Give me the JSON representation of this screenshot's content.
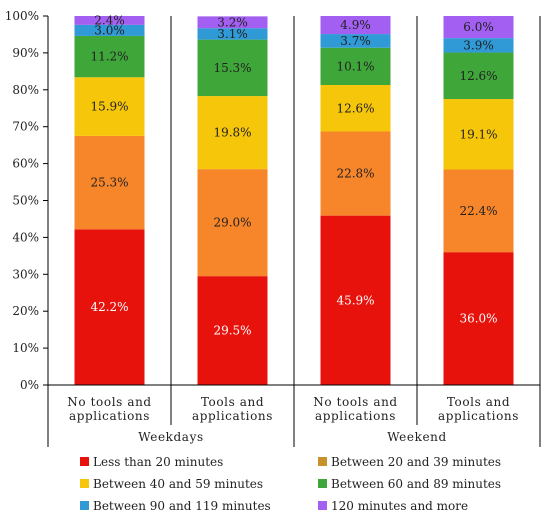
{
  "chart_data": {
    "type": "bar",
    "stacked": true,
    "percent": true,
    "categories": [
      "No tools and applications",
      "Tools and applications",
      "No tools and applications",
      "Tools and applications"
    ],
    "category_lines": [
      [
        "No tools and",
        "applications"
      ],
      [
        "Tools and",
        "applications"
      ],
      [
        "No tools and",
        "applications"
      ],
      [
        "Tools and",
        "applications"
      ]
    ],
    "groups": [
      {
        "label": "Weekdays",
        "categories": [
          0,
          1
        ]
      },
      {
        "label": "Weekend",
        "categories": [
          2,
          3
        ]
      }
    ],
    "ylim": [
      0,
      100
    ],
    "yticks": [
      "0%",
      "10%",
      "20%",
      "30%",
      "40%",
      "50%",
      "60%",
      "70%",
      "80%",
      "90%",
      "100%"
    ],
    "legend_position": "bottom",
    "series": [
      {
        "name": "Less than 20 minutes",
        "color": "#e8120c",
        "label_color": "#ffffff",
        "values": [
          42.2,
          29.5,
          45.9,
          36.0
        ],
        "labels": [
          "42.2%",
          "29.5%",
          "45.9%",
          "36.0%"
        ]
      },
      {
        "name": "Between 20 and 39 minutes",
        "color": "#f7862a",
        "label_color": "#222222",
        "values": [
          25.3,
          29.0,
          22.8,
          22.4
        ],
        "labels": [
          "25.3%",
          "29.0%",
          "22.8%",
          "22.4%"
        ]
      },
      {
        "name": "Between 40 and 59 minutes",
        "color": "#f6c60a",
        "label_color": "#222222",
        "values": [
          15.9,
          19.8,
          12.6,
          19.1
        ],
        "labels": [
          "15.9%",
          "19.8%",
          "12.6%",
          "19.1%"
        ]
      },
      {
        "name": "Between 60 and 89 minutes",
        "color": "#3fa63a",
        "label_color": "#222222",
        "values": [
          11.2,
          15.3,
          10.1,
          12.6
        ],
        "labels": [
          "11.2%",
          "15.3%",
          "10.1%",
          "12.6%"
        ]
      },
      {
        "name": "Between 90 and 119 minutes",
        "color": "#2f9ad6",
        "label_color": "#222222",
        "values": [
          3.0,
          3.1,
          3.7,
          3.9
        ],
        "labels": [
          "3.0%",
          "3.1%",
          "3.7%",
          "3.9%"
        ]
      },
      {
        "name": "120 minutes and more",
        "color": "#a25ff2",
        "label_color": "#222222",
        "values": [
          2.4,
          3.2,
          4.9,
          6.0
        ],
        "labels": [
          "2.4%",
          "3.2%",
          "4.9%",
          "6.0%"
        ]
      }
    ],
    "legend_swatch_colors": [
      "#e8120c",
      "#c8922a",
      "#f6c60a",
      "#3fa63a",
      "#2f9ad6",
      "#a25ff2"
    ]
  }
}
